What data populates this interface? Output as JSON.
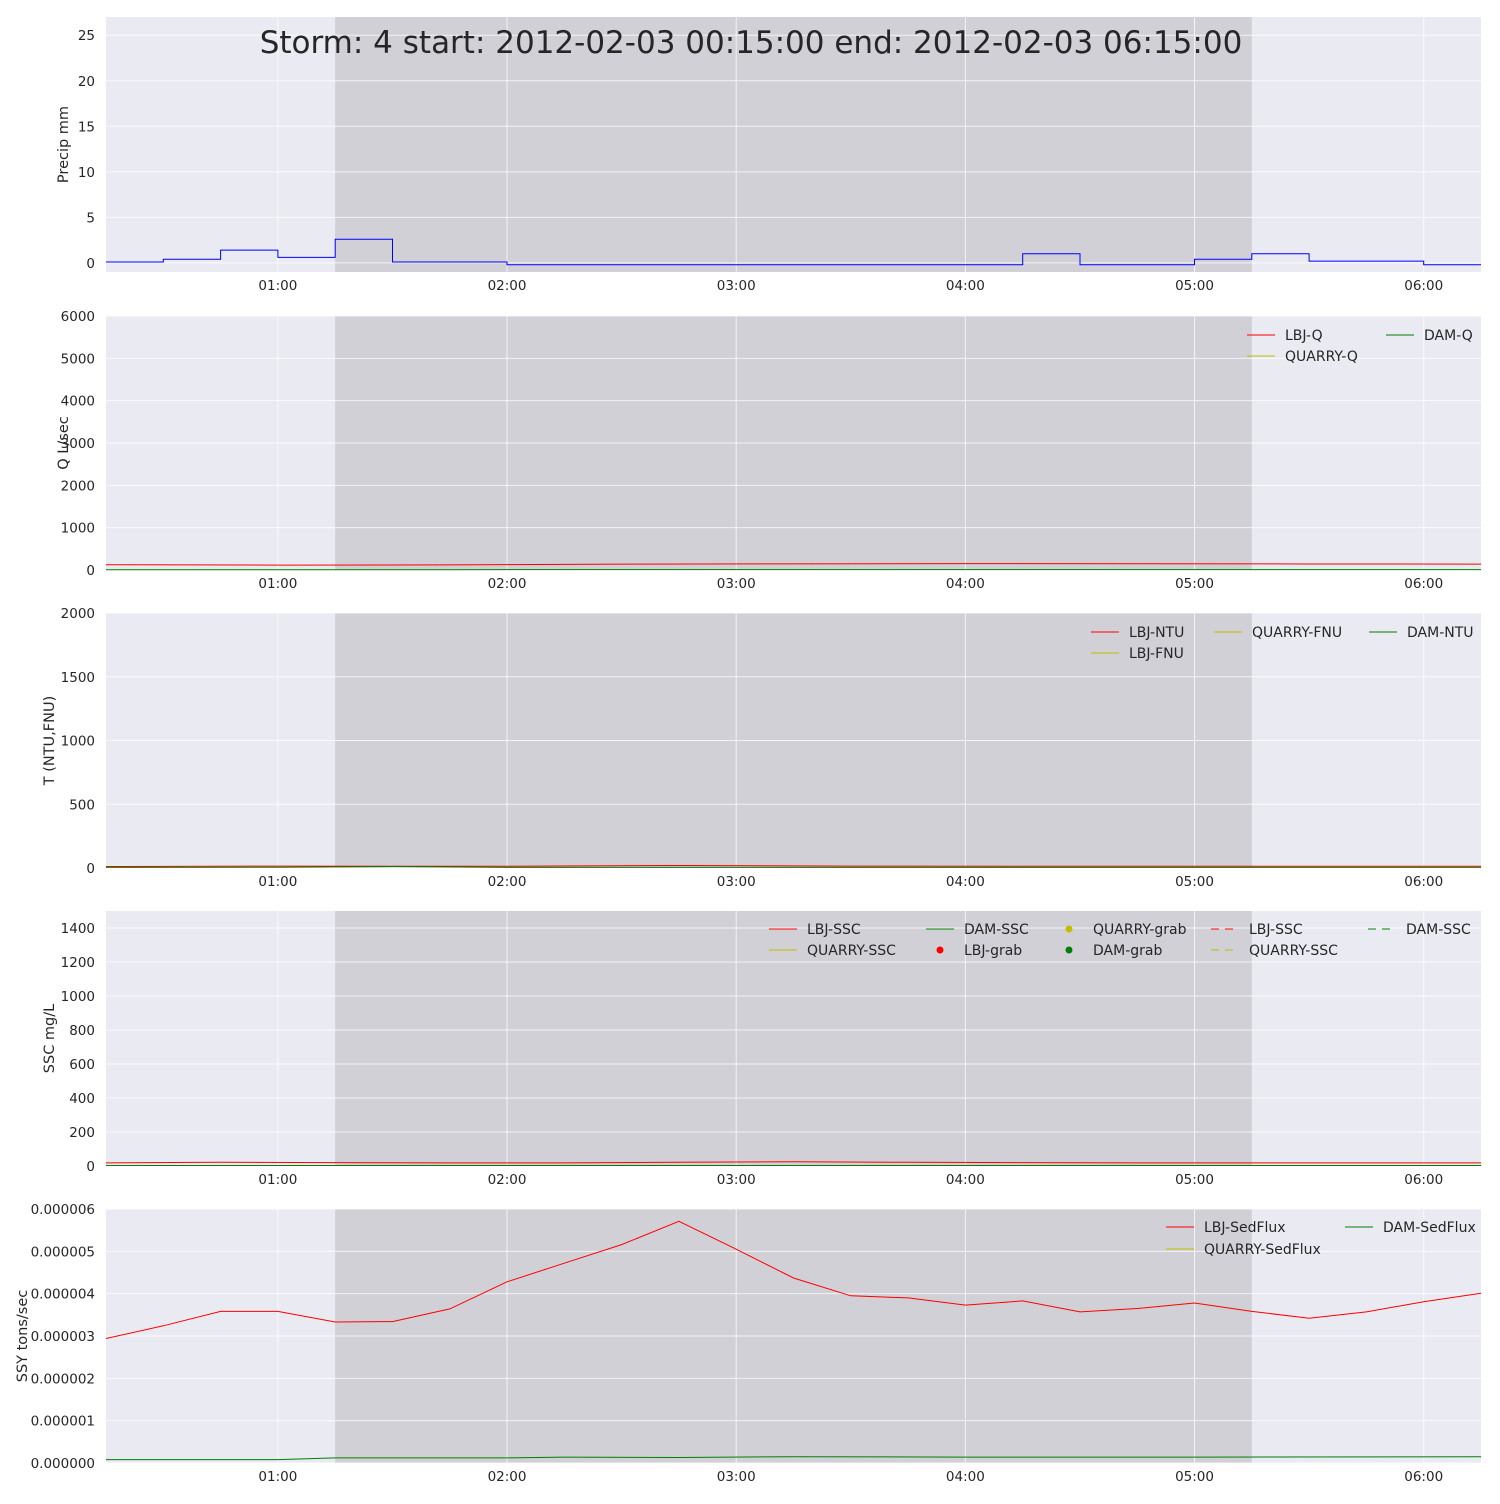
{
  "title": "Storm: 4 start: 2012-02-03 00:15:00 end: 2012-02-03 06:15:00",
  "x_tick_labels": [
    "01:00",
    "02:00",
    "03:00",
    "04:00",
    "05:00",
    "06:00"
  ],
  "colors": {
    "background": "#eaeaf2",
    "storm_shade": "#d0d0d6",
    "grid": "#ffffff",
    "precip": "#0000ff",
    "lbj": "#ff0000",
    "quarry": "#bfbf00",
    "dam": "#008000"
  },
  "chart_data": [
    {
      "type": "line",
      "id": "precip",
      "ylabel": "Precip mm",
      "ylim": [
        -1,
        27
      ],
      "yticks": [
        0,
        5,
        10,
        15,
        20,
        25
      ],
      "xlim": [
        "2012-02-03 00:15",
        "2012-02-03 06:15"
      ],
      "storm_window": [
        "2012-02-03 01:15",
        "2012-02-03 05:15"
      ],
      "step": true,
      "series": [
        {
          "name": "Precip",
          "color": "precip",
          "x": [
            "00:15",
            "00:30",
            "00:45",
            "01:00",
            "01:15",
            "01:30",
            "01:45",
            "02:00",
            "02:15",
            "02:30",
            "02:45",
            "03:00",
            "03:15",
            "03:30",
            "03:45",
            "04:00",
            "04:15",
            "04:30",
            "04:45",
            "05:00",
            "05:15",
            "05:30",
            "05:45",
            "06:00"
          ],
          "values": [
            0.1,
            0.4,
            1.4,
            0.6,
            2.6,
            0.1,
            0.1,
            -0.2,
            -0.2,
            -0.2,
            -0.2,
            -0.2,
            -0.2,
            -0.2,
            -0.2,
            -0.2,
            1.0,
            -0.2,
            -0.2,
            0.4,
            1.0,
            0.2,
            0.2,
            -0.2
          ]
        }
      ]
    },
    {
      "type": "line",
      "id": "discharge",
      "ylabel": "Q L/sec",
      "ylim": [
        0,
        6000
      ],
      "yticks": [
        0,
        1000,
        2000,
        3000,
        4000,
        5000,
        6000
      ],
      "xlim": [
        "2012-02-03 00:15",
        "2012-02-03 06:15"
      ],
      "storm_window": [
        "2012-02-03 01:15",
        "2012-02-03 05:15"
      ],
      "legend": {
        "location": "top-right",
        "columns": 2,
        "entries": [
          "LBJ-Q",
          "DAM-Q",
          "QUARRY-Q"
        ]
      },
      "series": [
        {
          "name": "LBJ-Q",
          "color": "lbj",
          "x": [
            "00:15",
            "01:00",
            "01:45",
            "02:30",
            "03:15",
            "04:00",
            "04:45",
            "05:30",
            "06:15"
          ],
          "values": [
            125,
            115,
            120,
            140,
            145,
            150,
            148,
            142,
            140
          ]
        },
        {
          "name": "DAM-Q",
          "color": "dam",
          "x": [
            "00:15",
            "01:00",
            "01:45",
            "02:30",
            "03:15",
            "04:00",
            "04:45",
            "05:30",
            "06:15"
          ],
          "values": [
            8,
            8,
            8,
            10,
            10,
            10,
            10,
            10,
            10
          ]
        },
        {
          "name": "QUARRY-Q",
          "color": "quarry",
          "x": [],
          "values": []
        }
      ]
    },
    {
      "type": "line",
      "id": "turbidity",
      "ylabel": "T (NTU,FNU)",
      "ylim": [
        0,
        2000
      ],
      "yticks": [
        0,
        500,
        1000,
        1500,
        2000
      ],
      "xlim": [
        "2012-02-03 00:15",
        "2012-02-03 06:15"
      ],
      "storm_window": [
        "2012-02-03 01:15",
        "2012-02-03 05:15"
      ],
      "legend": {
        "location": "top-right",
        "columns": 3,
        "entries": [
          "LBJ-NTU",
          "QUARRY-FNU",
          "DAM-NTU",
          "LBJ-FNU"
        ]
      },
      "series": [
        {
          "name": "LBJ-NTU",
          "color": "lbj",
          "x": [
            "00:15",
            "01:00",
            "01:30",
            "02:00",
            "02:45",
            "03:30",
            "04:15",
            "05:00",
            "05:45",
            "06:15"
          ],
          "values": [
            12,
            15,
            14,
            14,
            20,
            15,
            14,
            13,
            13,
            13
          ]
        },
        {
          "name": "DAM-NTU",
          "color": "dam",
          "x": [
            "00:15",
            "01:00",
            "01:30",
            "02:00",
            "02:45",
            "03:30",
            "04:15",
            "05:00",
            "05:45",
            "06:15"
          ],
          "values": [
            5,
            6,
            12,
            5,
            5,
            5,
            5,
            5,
            5,
            5
          ]
        },
        {
          "name": "QUARRY-FNU",
          "color": "quarry",
          "x": [],
          "values": []
        },
        {
          "name": "LBJ-FNU",
          "color": "quarry",
          "x": [],
          "values": []
        }
      ]
    },
    {
      "type": "line",
      "id": "ssc",
      "ylabel": "SSC mg/L",
      "ylim": [
        0,
        1500
      ],
      "yticks": [
        0,
        200,
        400,
        600,
        800,
        1000,
        1200,
        1400
      ],
      "xlim": [
        "2012-02-03 00:15",
        "2012-02-03 06:15"
      ],
      "storm_window": [
        "2012-02-03 01:15",
        "2012-02-03 05:15"
      ],
      "legend": {
        "location": "top-right",
        "columns": 5,
        "entries": [
          "LBJ-SSC",
          "DAM-SSC",
          "QUARRY-grab",
          "LBJ-SSC",
          "DAM-SSC",
          "QUARRY-SSC",
          "LBJ-grab",
          "DAM-grab",
          "QUARRY-SSC"
        ]
      },
      "series": [
        {
          "name": "LBJ-SSC",
          "color": "lbj",
          "x": [
            "00:15",
            "00:45",
            "01:15",
            "01:45",
            "02:15",
            "02:45",
            "03:15",
            "03:45",
            "04:15",
            "04:45",
            "05:15",
            "05:45",
            "06:15"
          ],
          "values": [
            18,
            22,
            20,
            18,
            18,
            22,
            25,
            22,
            20,
            18,
            18,
            18,
            18
          ]
        },
        {
          "name": "DAM-SSC",
          "color": "dam",
          "x": [
            "00:15",
            "01:15",
            "02:15",
            "03:15",
            "04:15",
            "05:15",
            "06:15"
          ],
          "values": [
            3,
            3,
            3,
            3,
            3,
            3,
            3
          ]
        }
      ]
    },
    {
      "type": "line",
      "id": "sediment-yield",
      "ylabel": "SSY tons/sec",
      "ylim": [
        0,
        6e-06
      ],
      "yticks": [
        "0.000000",
        "0.000001",
        "0.000002",
        "0.000003",
        "0.000004",
        "0.000005",
        "0.000006"
      ],
      "xlim": [
        "2012-02-03 00:15",
        "2012-02-03 06:15"
      ],
      "storm_window": [
        "2012-02-03 01:15",
        "2012-02-03 05:15"
      ],
      "legend": {
        "location": "top-right",
        "columns": 2,
        "entries": [
          "LBJ-SedFlux",
          "DAM-SedFlux",
          "QUARRY-SedFlux"
        ]
      },
      "series": [
        {
          "name": "LBJ-SedFlux",
          "color": "lbj",
          "x": [
            "00:15",
            "00:30",
            "00:45",
            "01:00",
            "01:15",
            "01:30",
            "01:45",
            "02:00",
            "02:15",
            "02:30",
            "02:45",
            "03:00",
            "03:15",
            "03:30",
            "03:45",
            "04:00",
            "04:15",
            "04:30",
            "04:45",
            "05:00",
            "05:15",
            "05:30",
            "05:45",
            "06:00",
            "06:15"
          ],
          "values": [
            2.94e-06,
            3.24e-06,
            3.58e-06,
            3.58e-06,
            3.33e-06,
            3.34e-06,
            3.64e-06,
            4.28e-06,
            4.72e-06,
            5.16e-06,
            5.71e-06,
            5.05e-06,
            4.37e-06,
            3.95e-06,
            3.9e-06,
            3.73e-06,
            3.83e-06,
            3.57e-06,
            3.65e-06,
            3.78e-06,
            3.58e-06,
            3.42e-06,
            3.57e-06,
            3.81e-06,
            4.01e-06
          ]
        },
        {
          "name": "DAM-SedFlux",
          "color": "dam",
          "x": [
            "00:15",
            "01:00",
            "01:15",
            "02:00",
            "02:15",
            "02:45",
            "03:15",
            "04:00",
            "05:00",
            "06:15"
          ],
          "values": [
            8e-08,
            8e-08,
            1.2e-07,
            1.2e-07,
            1.4e-07,
            1.3e-07,
            1.5e-07,
            1.4e-07,
            1.4e-07,
            1.5e-07
          ]
        },
        {
          "name": "QUARRY-SedFlux",
          "color": "quarry",
          "x": [],
          "values": []
        }
      ]
    }
  ]
}
